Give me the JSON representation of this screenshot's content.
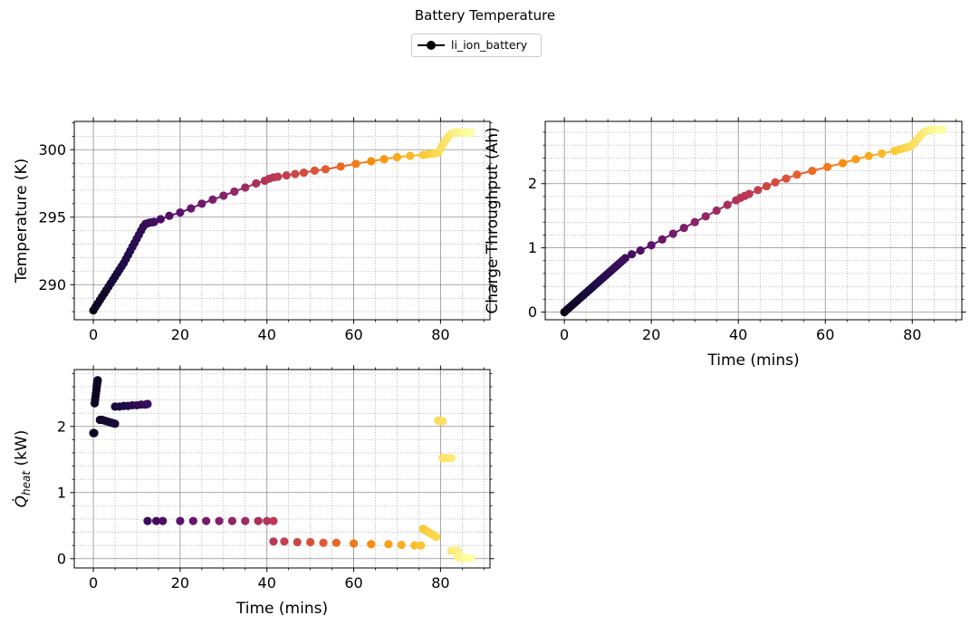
{
  "figure": {
    "title": "Battery Temperature",
    "legend": {
      "label": "li_ion_battery",
      "color": "#000000",
      "placement": "top-center"
    }
  },
  "chart_data": [
    {
      "type": "line",
      "name": "temperature",
      "xlabel": "",
      "ylabel": "Temperature (K)",
      "xlim": [
        -4.4,
        91.4
      ],
      "ylim": [
        287.4,
        302.1
      ],
      "xticks": [
        "0",
        "20",
        "40",
        "60",
        "80"
      ],
      "xtick_values": [
        0,
        20,
        40,
        60,
        80
      ],
      "yticks": [
        "290",
        "295",
        "300"
      ],
      "ytick_values": [
        290,
        295,
        300
      ],
      "grid": true,
      "series": [
        {
          "name": "li_ion_battery",
          "x": [
            0,
            0.5,
            1,
            1.5,
            2,
            2.5,
            3,
            3.5,
            4,
            4.5,
            5,
            5.5,
            6,
            6.5,
            7,
            7.5,
            8,
            8.5,
            9,
            9.5,
            10,
            10.5,
            11,
            11.5,
            12,
            12.5,
            13,
            13.5,
            14,
            15.5,
            17.5,
            20,
            22.5,
            25,
            27.5,
            30,
            32.5,
            35,
            37.5,
            39.5,
            40.5,
            41.5,
            42.5,
            44.5,
            46.5,
            48.5,
            51,
            53.5,
            57,
            60.5,
            64,
            67,
            70,
            73,
            76,
            77,
            78,
            78.5,
            79,
            79.5,
            80,
            80.5,
            81,
            81.5,
            82,
            82.5,
            83,
            83.5,
            84,
            84.5,
            85,
            85.5,
            86,
            86.5,
            87
          ],
          "y": [
            288.1,
            288.35,
            288.6,
            288.85,
            289.1,
            289.35,
            289.6,
            289.85,
            290.1,
            290.35,
            290.6,
            290.85,
            291.1,
            291.35,
            291.6,
            291.9,
            292.2,
            292.5,
            292.8,
            293.1,
            293.4,
            293.7,
            294.0,
            294.3,
            294.5,
            294.55,
            294.6,
            294.62,
            294.65,
            294.85,
            295.1,
            295.35,
            295.65,
            296.0,
            296.3,
            296.6,
            296.9,
            297.2,
            297.5,
            297.7,
            297.85,
            297.95,
            298.0,
            298.1,
            298.2,
            298.3,
            298.45,
            298.55,
            298.75,
            298.95,
            299.15,
            299.3,
            299.45,
            299.55,
            299.62,
            299.66,
            299.7,
            299.72,
            299.75,
            299.8,
            300.05,
            300.35,
            300.62,
            300.85,
            301.05,
            301.2,
            301.25,
            301.27,
            301.28,
            301.28,
            301.28,
            301.28,
            301.28,
            301.28,
            301.28
          ]
        }
      ]
    },
    {
      "type": "line",
      "name": "charge-throughput",
      "xlabel": "Time (mins)",
      "ylabel": "Charge Throughput (Ah)",
      "xlim": [
        -4.4,
        91.4
      ],
      "ylim": [
        -0.12,
        2.97
      ],
      "xticks": [
        "0",
        "20",
        "40",
        "60",
        "80"
      ],
      "xtick_values": [
        0,
        20,
        40,
        60,
        80
      ],
      "yticks": [
        "0",
        "1",
        "2"
      ],
      "ytick_values": [
        0,
        1,
        2
      ],
      "grid": true,
      "series": [
        {
          "name": "li_ion_battery",
          "x": [
            0,
            0.5,
            1,
            1.5,
            2,
            2.5,
            3,
            3.5,
            4,
            4.5,
            5,
            5.5,
            6,
            6.5,
            7,
            7.5,
            8,
            8.5,
            9,
            9.5,
            10,
            10.5,
            11,
            11.5,
            12,
            12.5,
            13,
            13.5,
            14,
            15.5,
            17.5,
            20,
            22.5,
            25,
            27.5,
            30,
            32.5,
            35,
            37.5,
            39.5,
            40.5,
            41.5,
            42.5,
            44.5,
            46.5,
            48.5,
            51,
            53.5,
            57,
            60.5,
            64,
            67,
            70,
            73,
            76,
            77,
            78,
            78.5,
            79,
            79.5,
            80,
            80.5,
            81,
            81.5,
            82,
            82.5,
            83,
            83.5,
            84,
            84.5,
            85,
            85.5,
            86,
            86.5,
            87
          ],
          "y": [
            0.0,
            0.03,
            0.06,
            0.09,
            0.12,
            0.15,
            0.18,
            0.21,
            0.24,
            0.27,
            0.3,
            0.33,
            0.36,
            0.39,
            0.42,
            0.45,
            0.48,
            0.51,
            0.54,
            0.57,
            0.6,
            0.63,
            0.66,
            0.69,
            0.72,
            0.75,
            0.78,
            0.81,
            0.84,
            0.9,
            0.96,
            1.04,
            1.13,
            1.22,
            1.31,
            1.4,
            1.49,
            1.58,
            1.67,
            1.74,
            1.78,
            1.81,
            1.84,
            1.9,
            1.96,
            2.02,
            2.08,
            2.14,
            2.2,
            2.26,
            2.32,
            2.38,
            2.43,
            2.47,
            2.51,
            2.53,
            2.55,
            2.56,
            2.57,
            2.58,
            2.6,
            2.64,
            2.68,
            2.72,
            2.76,
            2.79,
            2.81,
            2.82,
            2.83,
            2.84,
            2.84,
            2.84,
            2.84,
            2.84,
            2.84
          ]
        }
      ]
    },
    {
      "type": "scatter",
      "name": "heat",
      "xlabel": "Time (mins)",
      "ylabel": "Q̇heat (kW)",
      "ylabel_symbol": "Q̇",
      "ylabel_subscript": "heat",
      "ylabel_unit": "(kW)",
      "xlim": [
        -4.4,
        91.4
      ],
      "ylim": [
        -0.14,
        2.86
      ],
      "xticks": [
        "0",
        "20",
        "40",
        "60",
        "80"
      ],
      "xtick_values": [
        0,
        20,
        40,
        60,
        80
      ],
      "yticks": [
        "0",
        "1",
        "2"
      ],
      "ytick_values": [
        0,
        1,
        2
      ],
      "grid": true,
      "series": [
        {
          "name": "li_ion_battery",
          "x": [
            0,
            0.1,
            0.2,
            0.3,
            0.4,
            0.5,
            0.6,
            0.7,
            0.75,
            0.8,
            0.85,
            0.9,
            0.95,
            1.0,
            1.5,
            2,
            2.5,
            3,
            3.5,
            4,
            4.5,
            5,
            5,
            6,
            7,
            8,
            9,
            10,
            11,
            12,
            12.5,
            12.5,
            14.5,
            16,
            20,
            23,
            26,
            29,
            32,
            35,
            38,
            40,
            41.5,
            41.5,
            44,
            47,
            50,
            53,
            56,
            60,
            64,
            68,
            71,
            74,
            75.5,
            76,
            76.5,
            77,
            77.5,
            78,
            78.5,
            79,
            79.5,
            79.5,
            80,
            80.5,
            80.5,
            81,
            81.5,
            82,
            82.5,
            82.5,
            83,
            83.5,
            84,
            84,
            84.5,
            85,
            85.5,
            86,
            86.5,
            87
          ],
          "y": [
            1.9,
            1.9,
            1.9,
            2.35,
            2.4,
            2.45,
            2.5,
            2.55,
            2.6,
            2.62,
            2.64,
            2.66,
            2.68,
            2.7,
            2.1,
            2.1,
            2.09,
            2.08,
            2.07,
            2.06,
            2.05,
            2.04,
            2.3,
            2.3,
            2.31,
            2.31,
            2.32,
            2.32,
            2.33,
            2.33,
            2.34,
            0.57,
            0.57,
            0.57,
            0.57,
            0.57,
            0.57,
            0.57,
            0.57,
            0.57,
            0.57,
            0.57,
            0.57,
            0.26,
            0.26,
            0.25,
            0.25,
            0.24,
            0.24,
            0.23,
            0.22,
            0.22,
            0.21,
            0.2,
            0.2,
            0.45,
            0.43,
            0.41,
            0.39,
            0.37,
            0.35,
            0.33,
            2.09,
            2.09,
            2.08,
            2.08,
            1.52,
            1.52,
            1.52,
            1.52,
            1.52,
            0.12,
            0.12,
            0.12,
            0.12,
            0.02,
            0.02,
            0.01,
            0.01,
            0.01,
            0.01,
            0.01
          ]
        }
      ]
    }
  ]
}
